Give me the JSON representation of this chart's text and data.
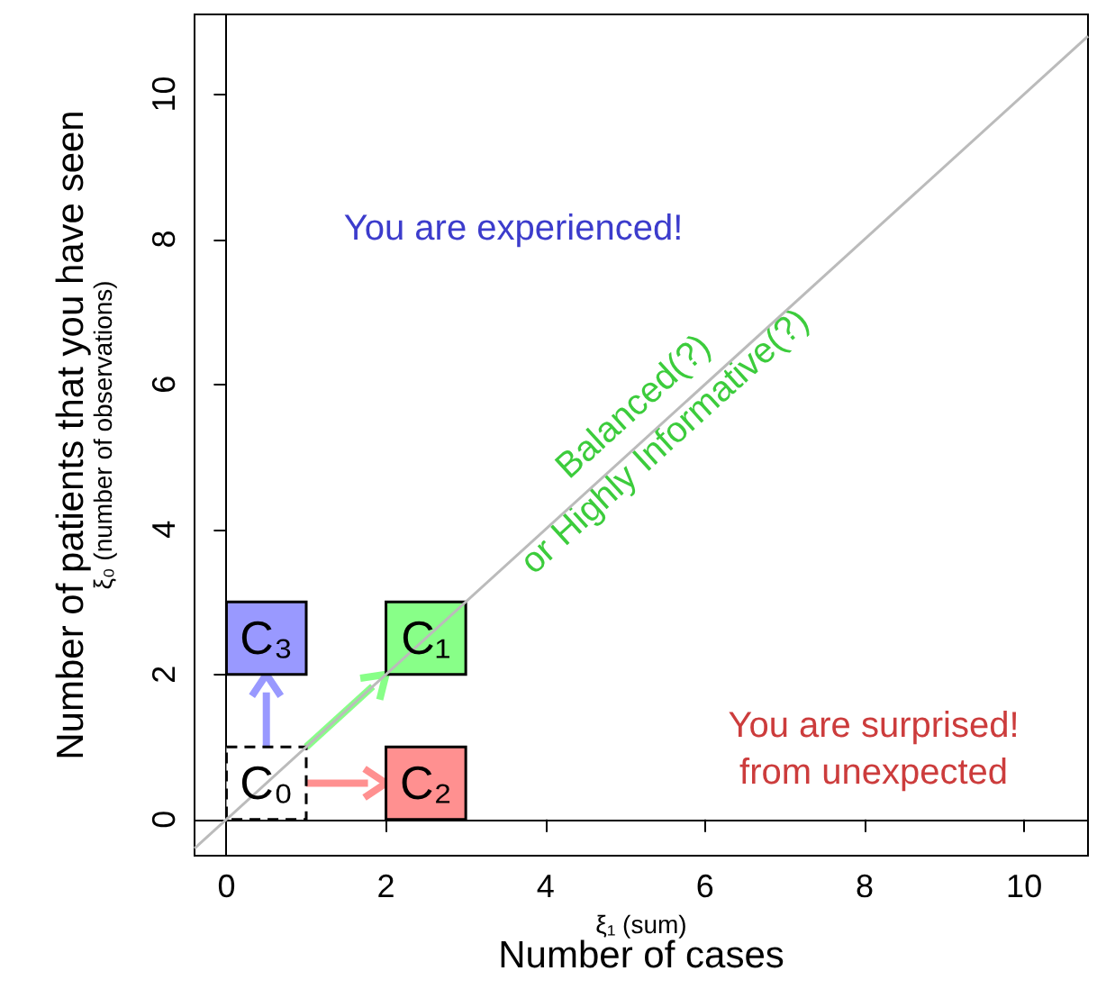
{
  "chart_data": {
    "type": "bar",
    "xlabel": "ξ₁ (sum)\nNumber of cases",
    "ylabel": "Number of patients that you have seen\nξ₀ (number of observations)",
    "xlim": [
      -0.4,
      10.8
    ],
    "ylim": [
      -0.5,
      11.1
    ],
    "xticks": [
      0,
      2,
      4,
      6,
      8,
      10
    ],
    "yticks": [
      0,
      2,
      4,
      6,
      8,
      10
    ],
    "series": [
      {
        "type": "line",
        "color": "#bbbbbb",
        "x": [
          -0.4,
          10.8
        ],
        "values": [
          -0.4,
          10.8
        ]
      },
      {
        "name": "C₀",
        "color": "#000000",
        "line_style": "dashed",
        "x": [
          0.5
        ],
        "base": [
          0
        ],
        "values": [
          1
        ]
      },
      {
        "name": "C₁",
        "color": "#88ff88",
        "x": [
          2.5
        ],
        "base": [
          2
        ],
        "values": [
          1
        ]
      },
      {
        "name": "C₂",
        "color": "#ff9090",
        "x": [
          2.5
        ],
        "base": [
          0
        ],
        "values": [
          1
        ]
      },
      {
        "name": "C₃",
        "color": "#9999ff",
        "x": [
          0.5
        ],
        "base": [
          2
        ],
        "values": [
          1
        ]
      }
    ],
    "annotations": [
      "You are experienced!",
      {
        "text": "Balanced(?)\nor Highly Informative(?)",
        "x": 5.3,
        "y": 5.45
      },
      "You are surprised!\nfrom unexpected"
    ]
  }
}
